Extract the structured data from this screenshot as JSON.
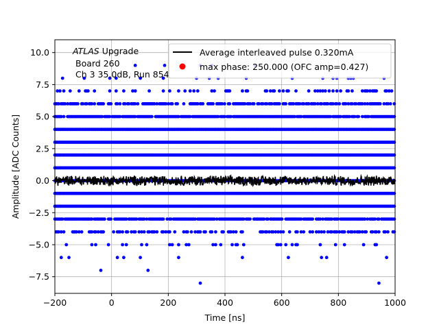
{
  "chart_data": {
    "type": "scatter",
    "xlabel": "Time [ns]",
    "ylabel": "Amplitude [ADC Counts]",
    "xlim": [
      -200,
      1000
    ],
    "ylim": [
      -8.8,
      11.0
    ],
    "x_ticks": [
      "−200",
      "0",
      "200",
      "400",
      "600",
      "800",
      "1000"
    ],
    "y_ticks": [
      "−7.5",
      "−5.0",
      "−2.5",
      "0.0",
      "2.5",
      "5.0",
      "7.5",
      "10.0"
    ],
    "x_tick_values": [
      -200,
      0,
      200,
      400,
      600,
      800,
      1000
    ],
    "y_tick_values": [
      -7.5,
      -5.0,
      -2.5,
      0.0,
      2.5,
      5.0,
      7.5,
      10.0
    ],
    "grid": true,
    "legend_position": "top-right",
    "annotation": {
      "italic": "ATLAS",
      "rest": " Upgrade",
      "line2": "Board 260",
      "line3": "Ch 3 35.0dB, Run 854"
    },
    "series": [
      {
        "name": "Average interleaved pulse 0.320mA",
        "type": "line",
        "color": "#000000",
        "level": 0.0,
        "noise_amplitude": 0.35
      },
      {
        "name": "max phase: 250.000 (OFC amp=0.427)",
        "type": "marker",
        "color": "#ff0000"
      },
      {
        "name": "",
        "type": "scatter",
        "color": "#0000ff",
        "levels": [
          {
            "y": 10.0,
            "density": 0.0
          },
          {
            "y": 9.0,
            "density": 0.02
          },
          {
            "y": 8.0,
            "density": 0.05
          },
          {
            "y": 7.0,
            "density": 0.25
          },
          {
            "y": 6.0,
            "density": 0.65
          },
          {
            "y": 5.0,
            "density": 0.92
          },
          {
            "y": 4.0,
            "density": 1.0
          },
          {
            "y": 3.0,
            "density": 1.0
          },
          {
            "y": 2.0,
            "density": 1.0
          },
          {
            "y": 1.0,
            "density": 1.0
          },
          {
            "y": 0.0,
            "density": 1.0
          },
          {
            "y": -1.0,
            "density": 1.0
          },
          {
            "y": -2.0,
            "density": 1.0
          },
          {
            "y": -3.0,
            "density": 0.88
          },
          {
            "y": -4.0,
            "density": 0.45
          },
          {
            "y": -5.0,
            "density": 0.12
          },
          {
            "y": -6.0,
            "density": 0.03
          },
          {
            "y": -7.0,
            "density": 0.01
          },
          {
            "y": -8.0,
            "density": 0.005
          }
        ]
      }
    ]
  }
}
